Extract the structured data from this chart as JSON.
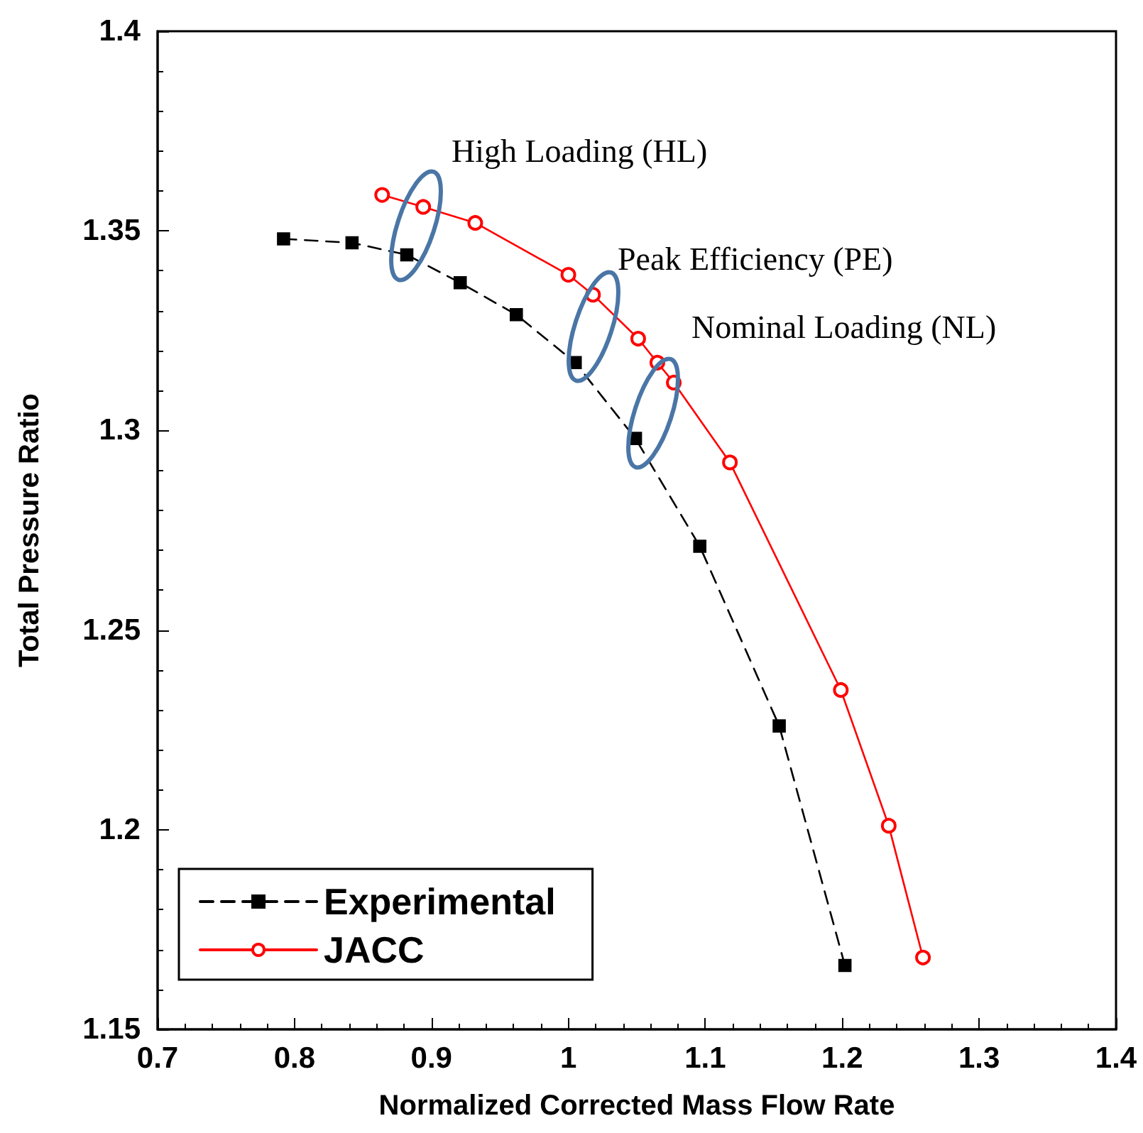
{
  "chart_data": {
    "type": "line",
    "xlabel": "Normalized Corrected Mass Flow Rate",
    "ylabel": "Total Pressure Ratio",
    "xlim": [
      0.7,
      1.4
    ],
    "xticks": [
      0.7,
      0.8,
      0.9,
      1,
      1.1,
      1.2,
      1.3,
      1.4
    ],
    "ylim": [
      1.15,
      1.4
    ],
    "yticks": [
      1.15,
      1.2,
      1.25,
      1.3,
      1.35,
      1.4
    ],
    "grid": false,
    "legend": "bottom left",
    "series": [
      {
        "name": "Experimental",
        "color": "#000000",
        "marker": "square",
        "line_style": "dashed",
        "x": [
          0.792,
          0.842,
          0.882,
          0.921,
          0.962,
          1.005,
          1.049,
          1.096,
          1.154,
          1.202
        ],
        "values": [
          1.348,
          1.347,
          1.344,
          1.337,
          1.329,
          1.317,
          1.298,
          1.271,
          1.226,
          1.166
        ]
      },
      {
        "name": "JACC",
        "color": "#ff0000",
        "marker": "circle",
        "line_style": "solid",
        "x": [
          0.864,
          0.894,
          0.932,
          1.0,
          1.018,
          1.051,
          1.065,
          1.077,
          1.118,
          1.199,
          1.234,
          1.259
        ],
        "values": [
          1.359,
          1.356,
          1.352,
          1.339,
          1.334,
          1.323,
          1.317,
          1.312,
          1.292,
          1.235,
          1.201,
          1.168
        ]
      }
    ],
    "annotations": [
      "High Loading (HL)",
      "Peak Efficiency (PE)",
      "Nominal Loading (NL)"
    ]
  }
}
